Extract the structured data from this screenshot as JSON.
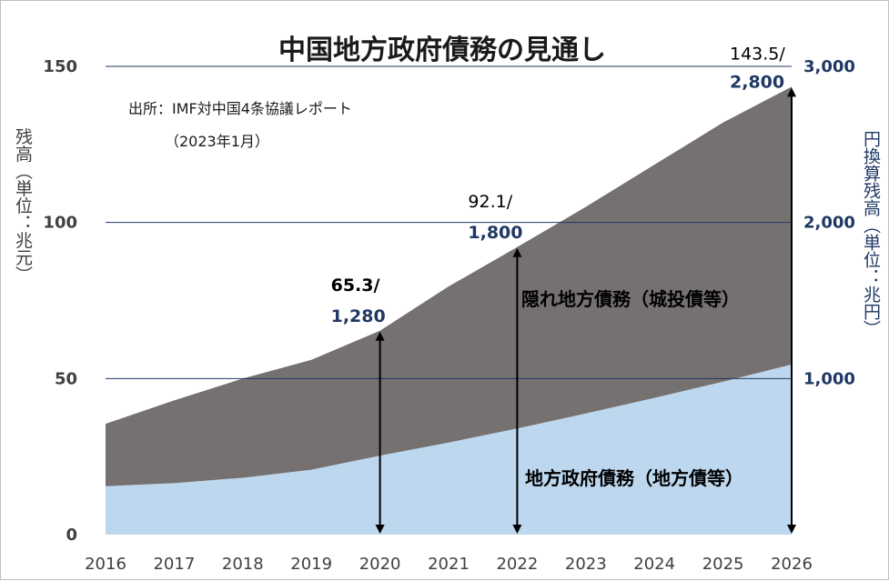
{
  "chart_data": {
    "type": "area",
    "title": "中国地方政府債務の見通し",
    "source_line1": "出所：IMF対中国4条協議レポート",
    "source_line2": "（2023年1月）",
    "ylabel": "残高（単位：兆元）",
    "y2label": "円換算残高（単位：兆円）",
    "categories": [
      "2016",
      "2017",
      "2018",
      "2019",
      "2020",
      "2021",
      "2022",
      "2023",
      "2024",
      "2025",
      "2026"
    ],
    "ylim": [
      0,
      150
    ],
    "yticks": [
      "0",
      "50",
      "100",
      "150"
    ],
    "y2ticks": [
      "1,000",
      "2,000",
      "3,000"
    ],
    "series": [
      {
        "name": "地方政府債務（地方債等）",
        "color": "#bdd7ee",
        "values": [
          15.5,
          16.5,
          18.2,
          20.8,
          25.3,
          29.5,
          34.0,
          38.8,
          43.8,
          49.0,
          54.5
        ]
      },
      {
        "name": "隠れ地方債務（城投債等）",
        "color": "#767171",
        "values": [
          20.0,
          26.5,
          31.8,
          35.2,
          40.0,
          50.0,
          58.1,
          66.2,
          74.7,
          83.0,
          89.0
        ]
      }
    ],
    "totals": [
      35.5,
      43.0,
      50.0,
      56.0,
      65.3,
      79.5,
      92.1,
      105.0,
      118.5,
      132.0,
      143.5
    ],
    "annotations": [
      {
        "category": "2020",
        "value": 65.3,
        "top": "65.3/",
        "yen": "1,280"
      },
      {
        "category": "2022",
        "value": 92.1,
        "top": "92.1/",
        "yen": "1,800"
      },
      {
        "category": "2026",
        "value": 143.5,
        "top": "143.5/",
        "yen": "2,800"
      }
    ]
  }
}
